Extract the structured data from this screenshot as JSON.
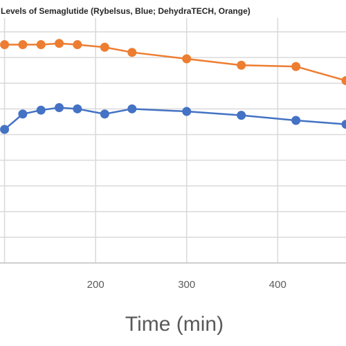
{
  "chart_data": {
    "type": "line",
    "title": "Levels of Semaglutide (Rybelsus, Blue; DehydraTECH, Orange)",
    "xlabel": "Time (min)",
    "ylabel": "",
    "xlim": [
      95,
      475
    ],
    "ylim": [
      0,
      9
    ],
    "x_ticks": [
      200,
      300,
      400
    ],
    "grid": true,
    "legend": "none",
    "series": [
      {
        "color": "#ED7D31",
        "points": [
          {
            "x": 100,
            "y": 8.5
          },
          {
            "x": 120,
            "y": 8.5
          },
          {
            "x": 140,
            "y": 8.5
          },
          {
            "x": 160,
            "y": 8.55
          },
          {
            "x": 180,
            "y": 8.5
          },
          {
            "x": 210,
            "y": 8.4
          },
          {
            "x": 240,
            "y": 8.2
          },
          {
            "x": 300,
            "y": 7.95
          },
          {
            "x": 360,
            "y": 7.7
          },
          {
            "x": 420,
            "y": 7.65
          },
          {
            "x": 475,
            "y": 7.1
          }
        ]
      },
      {
        "color": "#4472C4",
        "points": [
          {
            "x": 100,
            "y": 5.2
          },
          {
            "x": 120,
            "y": 5.8
          },
          {
            "x": 140,
            "y": 5.95
          },
          {
            "x": 160,
            "y": 6.05
          },
          {
            "x": 180,
            "y": 6.0
          },
          {
            "x": 210,
            "y": 5.8
          },
          {
            "x": 240,
            "y": 6.0
          },
          {
            "x": 300,
            "y": 5.9
          },
          {
            "x": 360,
            "y": 5.75
          },
          {
            "x": 420,
            "y": 5.55
          },
          {
            "x": 475,
            "y": 5.4
          }
        ]
      }
    ]
  }
}
